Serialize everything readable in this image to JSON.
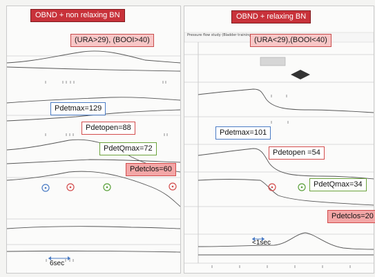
{
  "chart_data": [
    {
      "type": "line",
      "title": "OBND + non relaxing BN",
      "condition": "(URA>29), (BOOI>40)",
      "annotations": {
        "pdetmax": "Pdetmax=129",
        "pdetopen": "Pdetopen=88",
        "pdetqmax": "PdetQmax=72",
        "pdetclos": "Pdetclos=60",
        "time_scale": "6sec"
      }
    },
    {
      "type": "line",
      "title": "OBND + relaxing BN",
      "condition": "(URA<29),(BOOI<40)",
      "annotations": {
        "pdetmax": "Pdetmax=101",
        "pdetopen": "Pdetopen =54",
        "pdetqmax": "PdetQmax=34",
        "pdetclos": "Pdetclos=20",
        "time_scale": "<1sec"
      },
      "header_text": "Pressure flow study (Bladder training ..."
    }
  ],
  "colors": {
    "title_red": "#c8323a",
    "label_blue": "#4a7bc4",
    "label_red": "#d24b4b",
    "label_green": "#6aa23a",
    "label_pink": "#f3a7a7",
    "trace": "#555555",
    "marker_blue": "#4a7bc4",
    "marker_red": "#d24b4b",
    "marker_green": "#5aa03a"
  }
}
